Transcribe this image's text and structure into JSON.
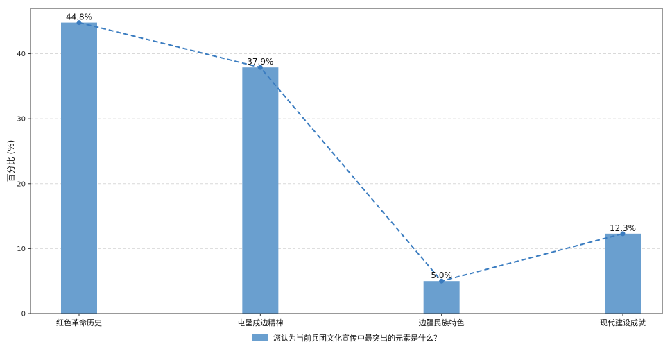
{
  "chart_data": {
    "type": "bar",
    "categories": [
      "红色革命历史",
      "屯垦戍边精神",
      "边疆民族特色",
      "现代建设成就"
    ],
    "series": [
      {
        "name": "您认为当前兵团文化宣传中最突出的元素是什么？",
        "values": [
          44.8,
          37.9,
          5.0,
          12.3
        ],
        "labels": [
          "44.8%",
          "37.9%",
          "5.0%",
          "12.3%"
        ]
      }
    ],
    "overlay_line": {
      "style": "dashed",
      "values": [
        44.8,
        37.9,
        5.0,
        12.3
      ]
    },
    "ylabel": "百分比 (%)",
    "xlabel": "",
    "ylim": [
      0,
      47
    ],
    "yticks": [
      "0",
      "10",
      "20",
      "30",
      "40"
    ],
    "grid": "horizontal dashed",
    "legend": "bottom-center",
    "colors": {
      "bar": "#6a9fcf",
      "line": "#3a7cc0",
      "grid": "#d9d9d9",
      "axis": "#333333"
    }
  }
}
